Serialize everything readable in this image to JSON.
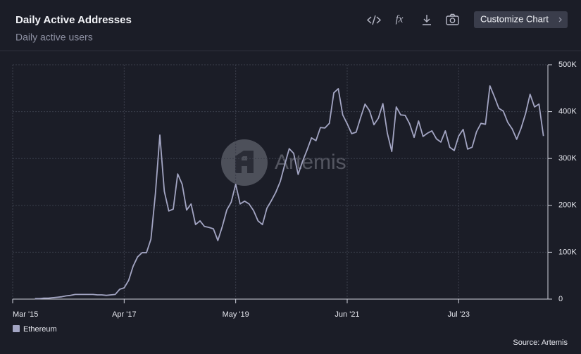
{
  "header": {
    "title": "Daily Active Addresses",
    "subtitle": "Daily active users"
  },
  "toolbar": {
    "fx": "fx",
    "button": "Customize Chart"
  },
  "watermark": "Artemis",
  "source": "Source: Artemis",
  "chart_data": {
    "type": "line",
    "x": [
      "2015-08",
      "2015-09",
      "2015-10",
      "2015-11",
      "2015-12",
      "2016-01",
      "2016-02",
      "2016-03",
      "2016-04",
      "2016-05",
      "2016-06",
      "2016-07",
      "2016-08",
      "2016-09",
      "2016-10",
      "2016-11",
      "2016-12",
      "2017-01",
      "2017-02",
      "2017-03",
      "2017-04",
      "2017-05",
      "2017-06",
      "2017-07",
      "2017-08",
      "2017-09",
      "2017-10",
      "2017-11",
      "2017-12",
      "2018-01",
      "2018-02",
      "2018-03",
      "2018-04",
      "2018-05",
      "2018-06",
      "2018-07",
      "2018-08",
      "2018-09",
      "2018-10",
      "2018-11",
      "2018-12",
      "2019-01",
      "2019-02",
      "2019-03",
      "2019-04",
      "2019-05",
      "2019-06",
      "2019-07",
      "2019-08",
      "2019-09",
      "2019-10",
      "2019-11",
      "2019-12",
      "2020-01",
      "2020-02",
      "2020-03",
      "2020-04",
      "2020-05",
      "2020-06",
      "2020-07",
      "2020-08",
      "2020-09",
      "2020-10",
      "2020-11",
      "2020-12",
      "2021-01",
      "2021-02",
      "2021-03",
      "2021-04",
      "2021-05",
      "2021-06",
      "2021-07",
      "2021-08",
      "2021-09",
      "2021-10",
      "2021-11",
      "2021-12",
      "2022-01",
      "2022-02",
      "2022-03",
      "2022-04",
      "2022-05",
      "2022-06",
      "2022-07",
      "2022-08",
      "2022-09",
      "2022-10",
      "2022-11",
      "2022-12",
      "2023-01",
      "2023-02",
      "2023-03",
      "2023-04",
      "2023-05",
      "2023-06",
      "2023-07",
      "2023-08",
      "2023-09",
      "2023-10",
      "2023-11",
      "2023-12",
      "2024-01",
      "2024-02",
      "2024-03",
      "2024-04",
      "2024-05",
      "2024-06",
      "2024-07",
      "2024-08",
      "2024-09",
      "2024-10",
      "2024-11",
      "2024-12",
      "2025-01",
      "2025-02"
    ],
    "series": [
      {
        "name": "Ethereum",
        "color": "#a3a5c3",
        "values": [
          1000,
          1000,
          2000,
          2000,
          3000,
          4000,
          5000,
          7000,
          8000,
          10000,
          10000,
          10000,
          10000,
          10000,
          9000,
          9000,
          8000,
          9000,
          10000,
          21000,
          24000,
          40000,
          70000,
          90000,
          99000,
          99000,
          128000,
          225000,
          350000,
          230000,
          188000,
          192000,
          267000,
          245000,
          190000,
          203000,
          159000,
          167000,
          155000,
          153000,
          150000,
          125000,
          155000,
          190000,
          207000,
          245000,
          203000,
          209000,
          203000,
          189000,
          167000,
          159000,
          194000,
          210000,
          228000,
          251000,
          287000,
          321000,
          311000,
          266000,
          294000,
          318000,
          344000,
          338000,
          366000,
          365000,
          375000,
          440000,
          449000,
          393000,
          374000,
          353000,
          356000,
          387000,
          416000,
          402000,
          372000,
          386000,
          417000,
          354000,
          315000,
          410000,
          393000,
          392000,
          374000,
          345000,
          380000,
          347000,
          354000,
          359000,
          342000,
          335000,
          359000,
          324000,
          317000,
          348000,
          362000,
          320000,
          324000,
          357000,
          375000,
          373000,
          455000,
          432000,
          407000,
          401000,
          377000,
          363000,
          341000,
          365000,
          396000,
          437000,
          410000,
          416000,
          348000
        ]
      }
    ],
    "xlim": [
      "2015-03",
      "2025-03"
    ],
    "xticks": [
      {
        "value": "2015-03",
        "label": "Mar '15"
      },
      {
        "value": "2017-04",
        "label": "Apr '17"
      },
      {
        "value": "2019-05",
        "label": "May '19"
      },
      {
        "value": "2021-06",
        "label": "Jun '21"
      },
      {
        "value": "2023-07",
        "label": "Jul '23"
      }
    ],
    "ylim": [
      0,
      500000
    ],
    "yticks": [
      0,
      {
        "value": 100000,
        "label": "100K"
      },
      {
        "value": 200000,
        "label": "200K"
      },
      {
        "value": 300000,
        "label": "300K"
      },
      {
        "value": 400000,
        "label": "400K"
      },
      {
        "value": 500000,
        "label": "500K"
      }
    ],
    "grid": true
  }
}
